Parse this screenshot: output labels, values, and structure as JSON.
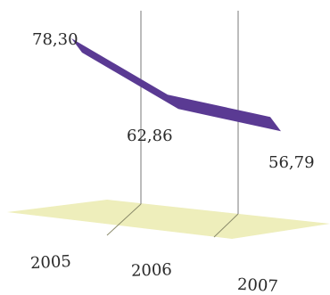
{
  "chart_data": {
    "type": "line",
    "categories": [
      "2005",
      "2006",
      "2007"
    ],
    "series": [
      {
        "values": [
          78.3,
          62.86,
          56.79
        ],
        "labels": [
          "78,30",
          "62,86",
          "56,79"
        ],
        "color": "#5a3a93"
      }
    ],
    "floor_color": "#eeeebb",
    "grid": true,
    "legend": "none",
    "title": "",
    "xlabel": "",
    "ylabel": ""
  }
}
